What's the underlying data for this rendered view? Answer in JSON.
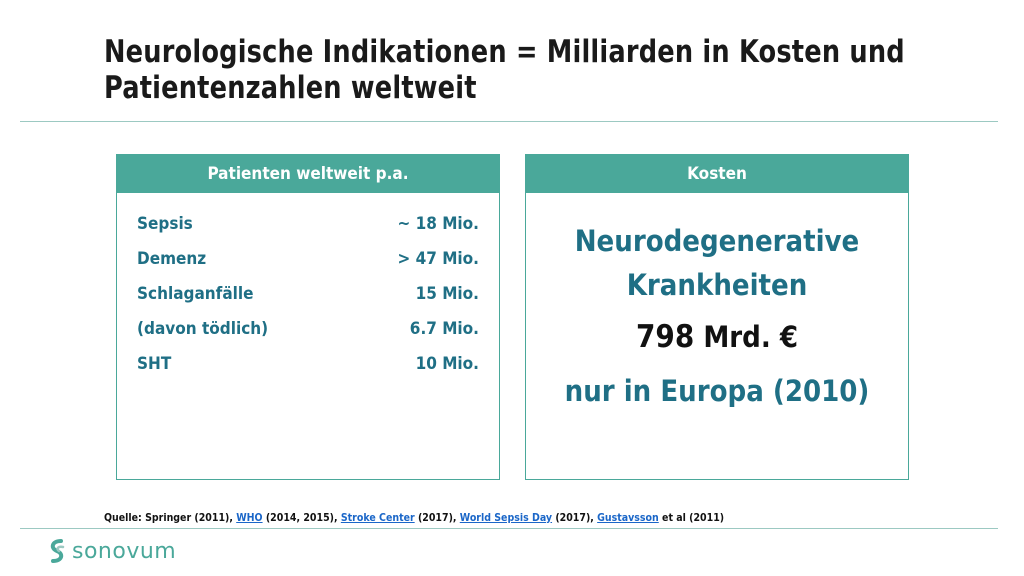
{
  "title": "Neurologische Indikationen = Milliarden in Kosten und Patientenzahlen weltweit",
  "patients": {
    "header": "Patienten weltweit p.a.",
    "rows": [
      {
        "label": "Sepsis",
        "value": "~ 18 Mio."
      },
      {
        "label": "Demenz",
        "value": "> 47 Mio."
      },
      {
        "label": "Schlaganfälle",
        "value": "15 Mio."
      },
      {
        "label": "(davon tödlich)",
        "value": "6.7 Mio."
      },
      {
        "label": "SHT",
        "value": "10 Mio."
      }
    ]
  },
  "costs": {
    "header": "Kosten",
    "heading_line1": "Neurodegenerative",
    "heading_line2": "Krankheiten",
    "amount_number": "798",
    "amount_unit": "Mrd. €",
    "region": "nur in Europa (2010)"
  },
  "source": {
    "prefix": "Quelle: Springer (2011), ",
    "link1": "WHO",
    "text1": " (2014, 2015), ",
    "link2": "Stroke Center",
    "text2": " (2017), ",
    "link3": "World Sepsis Day",
    "text3": " (2017), ",
    "link4": "Gustavsson",
    "text4": " et al (2011)"
  },
  "logo": {
    "text": "sonovum",
    "color": "#4aa89a"
  },
  "colors": {
    "accent": "#4aa89a",
    "text_blue": "#1f6f85"
  }
}
